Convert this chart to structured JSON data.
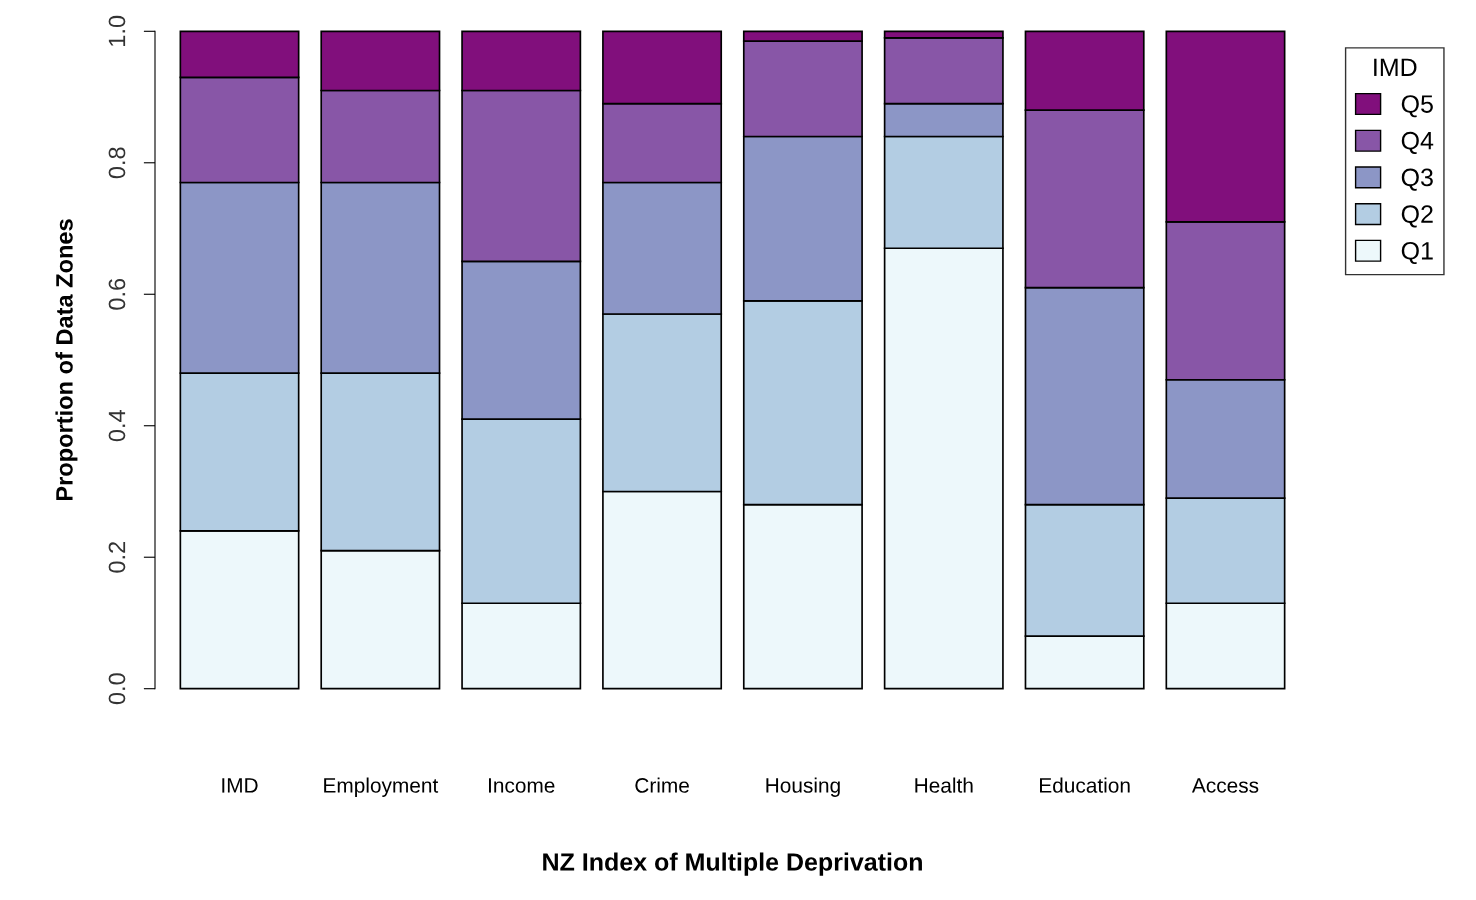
{
  "chart_data": {
    "type": "bar",
    "stacked": true,
    "xlabel": "NZ Index of Multiple Deprivation",
    "ylabel": "Proportion of Data Zones",
    "legend_title": "IMD",
    "legend": "right",
    "grid": false,
    "categories": [
      "IMD",
      "Employment",
      "Income",
      "Crime",
      "Housing",
      "Health",
      "Education",
      "Access"
    ],
    "ylim": [
      0,
      1
    ],
    "yticks": [
      {
        "value": 0,
        "label": "0.0"
      },
      0.2,
      0.4,
      0.6,
      0.8,
      {
        "value": 1,
        "label": "1.0"
      }
    ],
    "series": [
      {
        "name": "Q1",
        "color": "#edf8fb",
        "values": [
          0.24,
          0.21,
          0.13,
          0.3,
          0.28,
          0.67,
          0.08,
          0.13
        ]
      },
      {
        "name": "Q2",
        "color": "#b3cde3",
        "values": [
          0.24,
          0.27,
          0.28,
          0.27,
          0.31,
          0.17,
          0.2,
          0.16
        ]
      },
      {
        "name": "Q3",
        "color": "#8c96c6",
        "values": [
          0.29,
          0.29,
          0.24,
          0.2,
          0.25,
          0.05,
          0.33,
          0.18
        ]
      },
      {
        "name": "Q4",
        "color": "#8856a7",
        "values": [
          0.16,
          0.14,
          0.26,
          0.12,
          0.145,
          0.1,
          0.27,
          0.24
        ]
      },
      {
        "name": "Q5",
        "color": "#810f7c",
        "values": [
          0.07,
          0.09,
          0.09,
          0.11,
          0.015,
          0.01,
          0.12,
          0.29
        ]
      }
    ]
  }
}
